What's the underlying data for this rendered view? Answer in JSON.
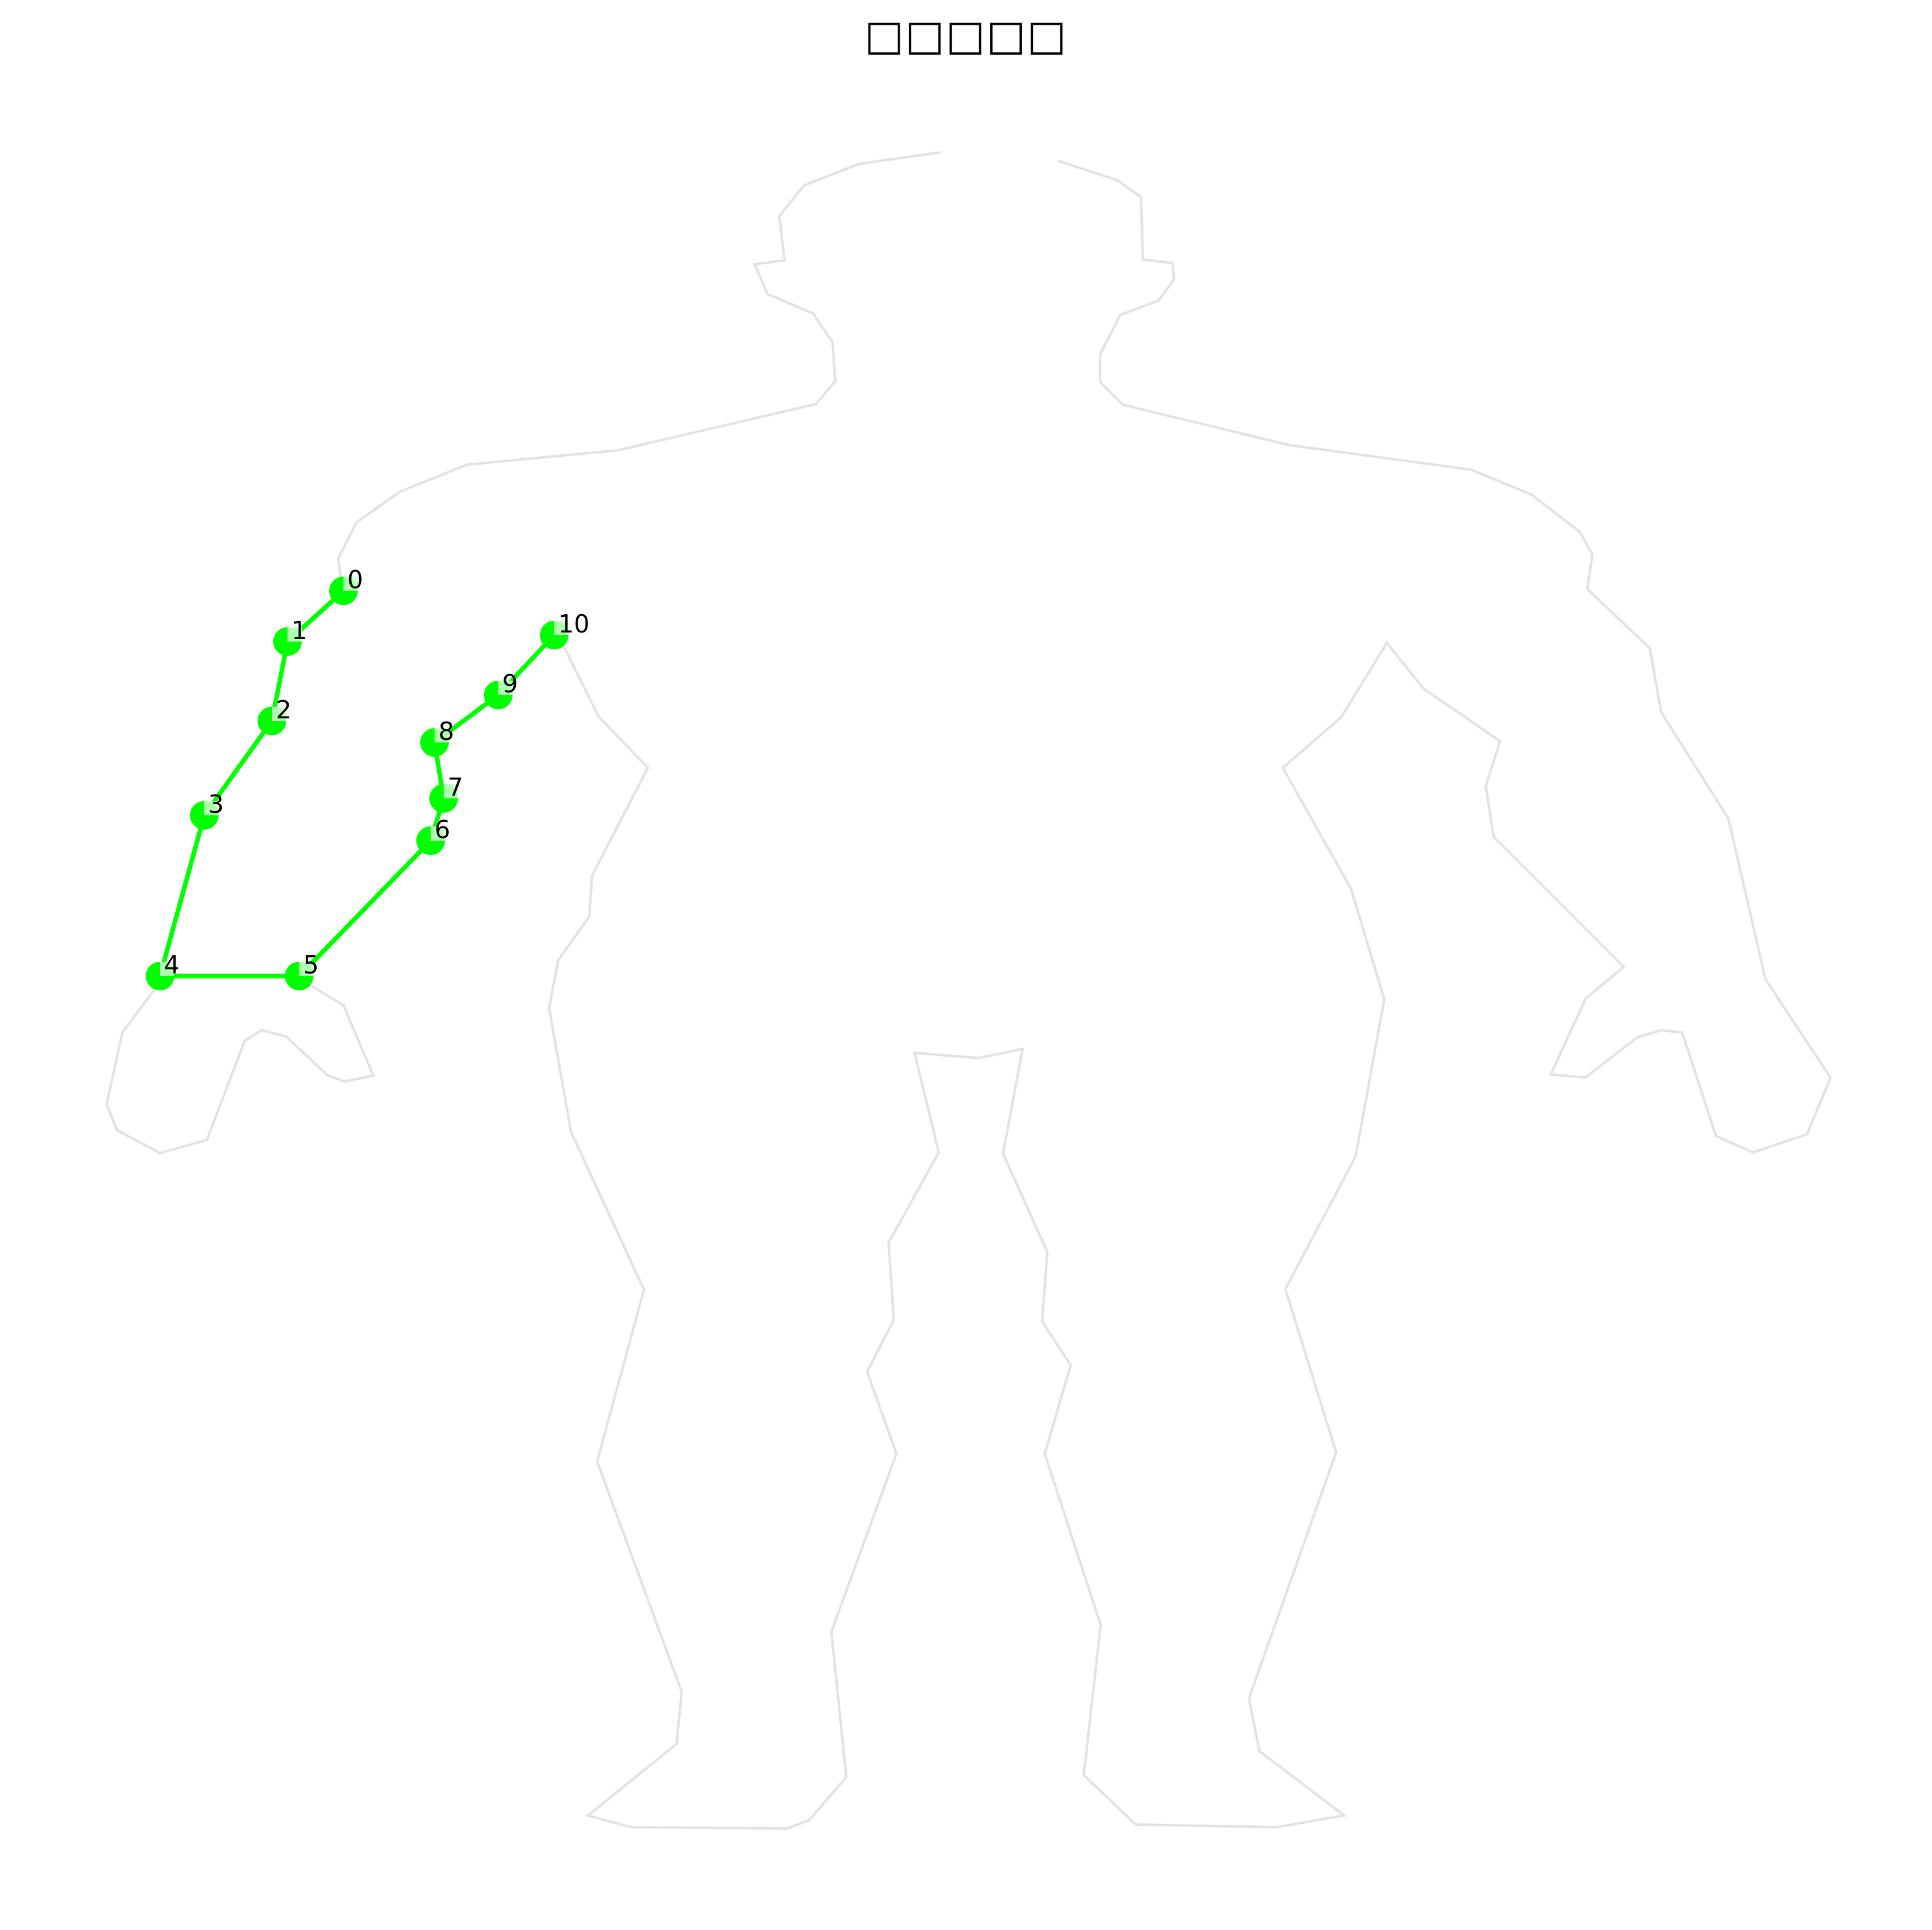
{
  "title": "□□□□□",
  "colors": {
    "outline": "#e3e3e3",
    "keypoint": "#00ff00",
    "keypoint_highlight": "#ccffcc",
    "edge": "#00ff00",
    "label": "#000000"
  },
  "keypoints": [
    {
      "id": "0",
      "label": "0"
    },
    {
      "id": "1",
      "label": "1"
    },
    {
      "id": "2",
      "label": "2"
    },
    {
      "id": "3",
      "label": "3"
    },
    {
      "id": "4",
      "label": "4"
    },
    {
      "id": "5",
      "label": "5"
    },
    {
      "id": "6",
      "label": "6"
    },
    {
      "id": "7",
      "label": "7"
    },
    {
      "id": "8",
      "label": "8"
    },
    {
      "id": "9",
      "label": "9"
    },
    {
      "id": "10",
      "label": "10"
    }
  ],
  "edges": [
    [
      "0",
      "1"
    ],
    [
      "1",
      "2"
    ],
    [
      "2",
      "3"
    ],
    [
      "3",
      "4"
    ],
    [
      "4",
      "5"
    ],
    [
      "5",
      "6"
    ],
    [
      "6",
      "7"
    ],
    [
      "7",
      "8"
    ],
    [
      "8",
      "9"
    ],
    [
      "9",
      "10"
    ]
  ]
}
